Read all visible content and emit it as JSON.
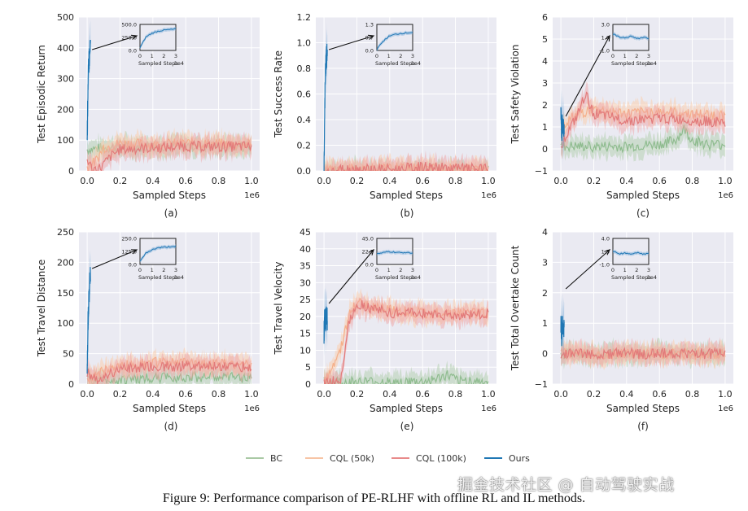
{
  "figure": {
    "caption": "Figure 9: Performance comparison of PE-RLHF with offline RL and IL methods.",
    "watermark": "掘金技术社区 @ 自动驾驶实战",
    "colors": {
      "background": "#eaeaf2",
      "grid": "#ffffff",
      "BC": "#8fbc8f",
      "CQL_50k": "#f5b895",
      "CQL_100k": "#e88383",
      "Ours": "#1f77b4"
    }
  },
  "legend": [
    {
      "label": "BC",
      "color": "#a9c9a4"
    },
    {
      "label": "CQL (50k)",
      "color": "#f7c4a5"
    },
    {
      "label": "CQL (100k)",
      "color": "#e88a8a"
    },
    {
      "label": "Ours",
      "color": "#1f77b4"
    }
  ],
  "chart_data": [
    {
      "panel": "(a)",
      "type": "line",
      "xlabel": "Sampled Steps",
      "x_offset_text": "1e6",
      "ylabel": "Test Episodic Return",
      "xlim": [
        0,
        1.0
      ],
      "ylim": [
        0,
        500
      ],
      "xticks": [
        "0.0",
        "0.2",
        "0.4",
        "0.6",
        "0.8",
        "1.0"
      ],
      "yticks": [
        "0",
        "100",
        "200",
        "300",
        "400",
        "500"
      ],
      "series": [
        {
          "name": "BC",
          "x": [
            0.0,
            0.2,
            0.4,
            0.6,
            0.8,
            1.0
          ],
          "values": [
            70,
            78,
            80,
            82,
            80,
            80
          ]
        },
        {
          "name": "CQL (50k)",
          "x": [
            0.0,
            0.05,
            0.1,
            0.2,
            0.4,
            0.6,
            0.8,
            1.0
          ],
          "values": [
            15,
            30,
            75,
            90,
            85,
            90,
            88,
            85
          ]
        },
        {
          "name": "CQL (100k)",
          "x": [
            0.0,
            0.03,
            0.08,
            0.15,
            0.2,
            0.4,
            0.6,
            0.8,
            1.0
          ],
          "values": [
            40,
            5,
            10,
            50,
            70,
            75,
            80,
            78,
            80
          ]
        },
        {
          "name": "Ours",
          "x": [
            0.0,
            0.005,
            0.01,
            0.015,
            0.02
          ],
          "values": [
            100,
            280,
            350,
            380,
            395
          ]
        }
      ],
      "inset": {
        "xlabel": "Sampled Steps",
        "x_offset_text": "1e4",
        "xticks": [
          "0",
          "1",
          "2",
          "3"
        ],
        "yticks": [
          "0.0",
          "250.0",
          "500.0"
        ],
        "ylim": [
          0,
          500
        ],
        "x": [
          0,
          0.5,
          1,
          1.5,
          2,
          2.5,
          3
        ],
        "values": [
          50,
          260,
          330,
          370,
          390,
          400,
          410
        ]
      }
    },
    {
      "panel": "(b)",
      "type": "line",
      "xlabel": "Sampled Steps",
      "x_offset_text": "1e6",
      "ylabel": "Test Success Rate",
      "xlim": [
        0,
        1.0
      ],
      "ylim": [
        0,
        1.2
      ],
      "xticks": [
        "0.0",
        "0.2",
        "0.4",
        "0.6",
        "0.8",
        "1.0"
      ],
      "yticks": [
        "0.0",
        "0.2",
        "0.4",
        "0.6",
        "0.8",
        "1.0",
        "1.2"
      ],
      "series": [
        {
          "name": "BC",
          "x": [
            0.0,
            1.0
          ],
          "values": [
            0.0,
            0.0
          ]
        },
        {
          "name": "CQL (50k)",
          "x": [
            0.0,
            0.5,
            1.0
          ],
          "values": [
            0.01,
            0.02,
            0.01
          ]
        },
        {
          "name": "CQL (100k)",
          "x": [
            0.0,
            0.2,
            0.4,
            0.6,
            0.8,
            1.0
          ],
          "values": [
            0.0,
            0.02,
            0.01,
            0.03,
            0.02,
            0.01
          ]
        },
        {
          "name": "Ours",
          "x": [
            0.0,
            0.005,
            0.01,
            0.015,
            0.02
          ],
          "values": [
            0.0,
            0.55,
            0.8,
            0.88,
            0.92
          ]
        }
      ],
      "inset": {
        "xlabel": "Sampled Steps",
        "x_offset_text": "1e4",
        "xticks": [
          "0",
          "1",
          "2",
          "3"
        ],
        "yticks": [
          "0.0",
          "0.7",
          "1.3"
        ],
        "ylim": [
          0,
          1.3
        ],
        "x": [
          0,
          0.5,
          1,
          1.5,
          2,
          2.5,
          3
        ],
        "values": [
          0.05,
          0.45,
          0.7,
          0.8,
          0.85,
          0.88,
          0.9
        ]
      }
    },
    {
      "panel": "(c)",
      "type": "line",
      "xlabel": "Sampled Steps",
      "x_offset_text": "1e6",
      "ylabel": "Test Safety Violation",
      "xlim": [
        0,
        1.0
      ],
      "ylim": [
        -1,
        6
      ],
      "xticks": [
        "0.0",
        "0.2",
        "0.4",
        "0.6",
        "0.8",
        "1.0"
      ],
      "yticks": [
        "−1",
        "0",
        "1",
        "2",
        "3",
        "4",
        "5",
        "6"
      ],
      "series": [
        {
          "name": "BC",
          "x": [
            0.0,
            0.2,
            0.4,
            0.6,
            0.7,
            0.75,
            0.8,
            0.9,
            1.0
          ],
          "values": [
            0.1,
            0.1,
            0.1,
            0.2,
            0.4,
            0.9,
            0.4,
            0.2,
            0.2
          ]
        },
        {
          "name": "CQL (50k)",
          "x": [
            0.0,
            0.1,
            0.2,
            0.4,
            0.6,
            0.8,
            1.0
          ],
          "values": [
            1.0,
            1.6,
            1.8,
            1.6,
            1.7,
            1.6,
            1.5
          ]
        },
        {
          "name": "CQL (100k)",
          "x": [
            0.0,
            0.1,
            0.15,
            0.2,
            0.4,
            0.6,
            0.8,
            1.0
          ],
          "values": [
            0.2,
            1.5,
            2.5,
            1.6,
            1.3,
            1.4,
            1.3,
            1.2
          ]
        },
        {
          "name": "Ours",
          "x": [
            0.0,
            0.005,
            0.01,
            0.015,
            0.02
          ],
          "values": [
            1.6,
            0.8,
            1.2,
            0.9,
            1.0
          ]
        }
      ],
      "inset": {
        "xlabel": "Sampled Steps",
        "x_offset_text": "1e4",
        "xticks": [
          "0",
          "1",
          "2",
          "3"
        ],
        "yticks": [
          "-1.0",
          "1.0",
          "3.0"
        ],
        "ylim": [
          -1,
          3
        ],
        "x": [
          0,
          0.5,
          1,
          1.5,
          2,
          2.5,
          3
        ],
        "values": [
          1.5,
          1.1,
          0.9,
          1.2,
          0.8,
          1.0,
          0.9
        ]
      }
    },
    {
      "panel": "(d)",
      "type": "line",
      "xlabel": "Sampled Steps",
      "x_offset_text": "1e6",
      "ylabel": "Test Travel Distance",
      "xlim": [
        0,
        1.0
      ],
      "ylim": [
        0,
        250
      ],
      "xticks": [
        "0.0",
        "0.2",
        "0.4",
        "0.6",
        "0.8",
        "1.0"
      ],
      "yticks": [
        "0",
        "50",
        "100",
        "150",
        "200",
        "250"
      ],
      "series": [
        {
          "name": "BC",
          "x": [
            0.0,
            0.2,
            0.4,
            0.6,
            0.8,
            1.0
          ],
          "values": [
            5,
            8,
            10,
            12,
            12,
            10
          ]
        },
        {
          "name": "CQL (50k)",
          "x": [
            0.0,
            0.1,
            0.2,
            0.4,
            0.6,
            0.8,
            1.0
          ],
          "values": [
            10,
            20,
            30,
            35,
            35,
            33,
            32
          ]
        },
        {
          "name": "CQL (100k)",
          "x": [
            0.0,
            0.05,
            0.15,
            0.2,
            0.4,
            0.6,
            0.8,
            1.0
          ],
          "values": [
            20,
            5,
            20,
            25,
            28,
            30,
            30,
            28
          ]
        },
        {
          "name": "Ours",
          "x": [
            0.0,
            0.005,
            0.01,
            0.015,
            0.02
          ],
          "values": [
            20,
            100,
            140,
            165,
            175
          ]
        }
      ],
      "inset": {
        "xlabel": "Sampled Steps",
        "x_offset_text": "1e4",
        "xticks": [
          "0",
          "1",
          "2",
          "3"
        ],
        "yticks": [
          "0.0",
          "125.0",
          "250.0"
        ],
        "ylim": [
          0,
          250
        ],
        "x": [
          0,
          0.5,
          1,
          1.5,
          2,
          2.5,
          3
        ],
        "values": [
          30,
          110,
          140,
          160,
          165,
          170,
          175
        ]
      }
    },
    {
      "panel": "(e)",
      "type": "line",
      "xlabel": "Sampled Steps",
      "x_offset_text": "1e6",
      "ylabel": "Test Travel Velocity",
      "xlim": [
        0,
        1.0
      ],
      "ylim": [
        0,
        45
      ],
      "xticks": [
        "0.0",
        "0.2",
        "0.4",
        "0.6",
        "0.8",
        "1.0"
      ],
      "yticks": [
        "0",
        "5",
        "10",
        "15",
        "20",
        "25",
        "30",
        "35",
        "40",
        "45"
      ],
      "series": [
        {
          "name": "BC",
          "x": [
            0.0,
            0.2,
            0.4,
            0.6,
            0.7,
            0.75,
            0.8,
            1.0
          ],
          "values": [
            0.5,
            0.5,
            0.5,
            0.5,
            1.5,
            2.5,
            1.0,
            0.5
          ]
        },
        {
          "name": "CQL (50k)",
          "x": [
            0.0,
            0.1,
            0.15,
            0.2,
            0.4,
            0.6,
            0.8,
            1.0
          ],
          "values": [
            0.5,
            10,
            20,
            24,
            22,
            21,
            21,
            21
          ]
        },
        {
          "name": "CQL (100k)",
          "x": [
            0.0,
            0.1,
            0.15,
            0.2,
            0.25,
            0.4,
            0.6,
            0.8,
            1.0
          ],
          "values": [
            0.5,
            1,
            18,
            24,
            23,
            21,
            21,
            20,
            21
          ]
        },
        {
          "name": "Ours",
          "x": [
            0.0,
            0.005,
            0.01,
            0.015,
            0.02
          ],
          "values": [
            15,
            20,
            18,
            21,
            19
          ]
        }
      ],
      "inset": {
        "xlabel": "Sampled Steps",
        "x_offset_text": "1e4",
        "xticks": [
          "0",
          "1",
          "2",
          "3"
        ],
        "yticks": [
          "0.0",
          "22.5",
          "45.0"
        ],
        "ylim": [
          0,
          45
        ],
        "x": [
          0,
          0.5,
          1,
          1.5,
          2,
          2.5,
          3
        ],
        "values": [
          18,
          20,
          22,
          21,
          20,
          21,
          20
        ]
      }
    },
    {
      "panel": "(f)",
      "type": "line",
      "xlabel": "Sampled Steps",
      "x_offset_text": "1e6",
      "ylabel": "Test Total Overtake Count",
      "xlim": [
        0,
        1.0
      ],
      "ylim": [
        -1,
        4
      ],
      "xticks": [
        "0.0",
        "0.2",
        "0.4",
        "0.6",
        "0.8",
        "1.0"
      ],
      "yticks": [
        "−1",
        "0",
        "1",
        "2",
        "3",
        "4"
      ],
      "series": [
        {
          "name": "BC",
          "x": [
            0.0,
            0.7,
            0.75,
            0.8,
            1.0
          ],
          "values": [
            0.0,
            0.0,
            0.05,
            0.0,
            0.0
          ]
        },
        {
          "name": "CQL (50k)",
          "x": [
            0.0,
            1.0
          ],
          "values": [
            0.0,
            0.0
          ]
        },
        {
          "name": "CQL (100k)",
          "x": [
            0.0,
            1.0
          ],
          "values": [
            0.0,
            0.0
          ]
        },
        {
          "name": "Ours",
          "x": [
            0.0,
            0.005,
            0.01,
            0.015,
            0.02
          ],
          "values": [
            1.0,
            0.5,
            1.2,
            0.6,
            0.9
          ]
        }
      ],
      "inset": {
        "xlabel": "Sampled Steps",
        "x_offset_text": "1e4",
        "xticks": [
          "0",
          "1",
          "2",
          "3"
        ],
        "yticks": [
          "-1.0",
          "1.5",
          "4.0"
        ],
        "ylim": [
          -1,
          4
        ],
        "x": [
          0,
          0.5,
          1,
          1.5,
          2,
          2.5,
          3
        ],
        "values": [
          1.6,
          1.0,
          1.2,
          0.9,
          1.3,
          1.0,
          1.1
        ]
      }
    }
  ],
  "panel_labels": [
    "(a)",
    "(b)",
    "(c)",
    "(d)",
    "(e)",
    "(f)"
  ]
}
